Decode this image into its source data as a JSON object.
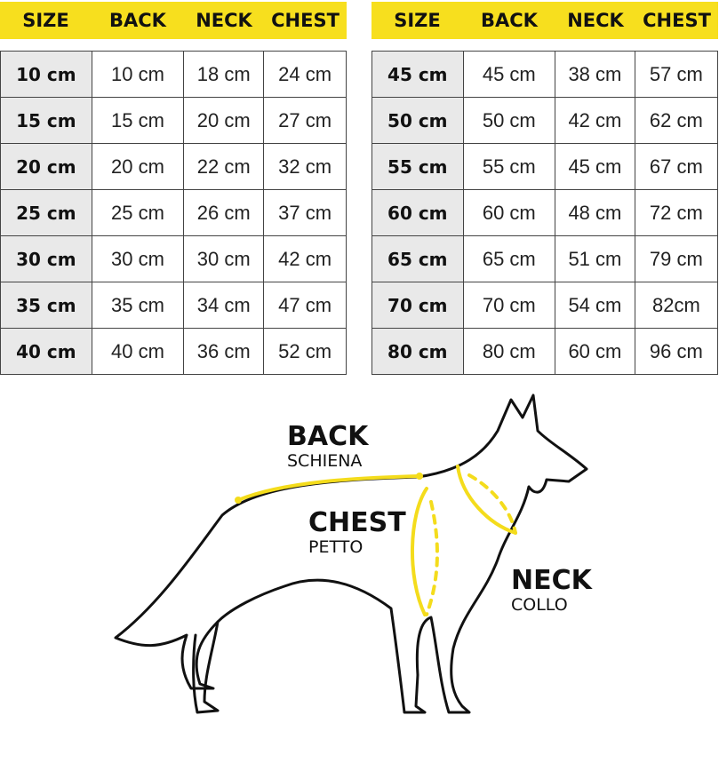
{
  "headers": [
    "SIZE",
    "BACK",
    "NECK",
    "CHEST"
  ],
  "left_table": [
    [
      "10 cm",
      "10 cm",
      "18 cm",
      "24 cm"
    ],
    [
      "15 cm",
      "15 cm",
      "20 cm",
      "27 cm"
    ],
    [
      "20 cm",
      "20 cm",
      "22 cm",
      "32 cm"
    ],
    [
      "25 cm",
      "25 cm",
      "26 cm",
      "37 cm"
    ],
    [
      "30 cm",
      "30 cm",
      "30 cm",
      "42 cm"
    ],
    [
      "35 cm",
      "35 cm",
      "34 cm",
      "47 cm"
    ],
    [
      "40 cm",
      "40 cm",
      "36 cm",
      "52 cm"
    ]
  ],
  "right_table": [
    [
      "45 cm",
      "45 cm",
      "38 cm",
      "57 cm"
    ],
    [
      "50 cm",
      "50 cm",
      "42 cm",
      "62 cm"
    ],
    [
      "55 cm",
      "55 cm",
      "45 cm",
      "67 cm"
    ],
    [
      "60 cm",
      "60 cm",
      "48 cm",
      "72 cm"
    ],
    [
      "65 cm",
      "65 cm",
      "51 cm",
      "79 cm"
    ],
    [
      "70 cm",
      "70 cm",
      "54 cm",
      "82cm"
    ],
    [
      "80 cm",
      "80 cm",
      "60 cm",
      "96 cm"
    ]
  ],
  "labels": {
    "back": {
      "title": "BACK",
      "subtitle": "SCHIENA"
    },
    "chest": {
      "title": "CHEST",
      "subtitle": "PETTO"
    },
    "neck": {
      "title": "NECK",
      "subtitle": "COLLO"
    }
  },
  "colors": {
    "accent": "#f7df1e",
    "size_cell": "#e9e9e9"
  }
}
